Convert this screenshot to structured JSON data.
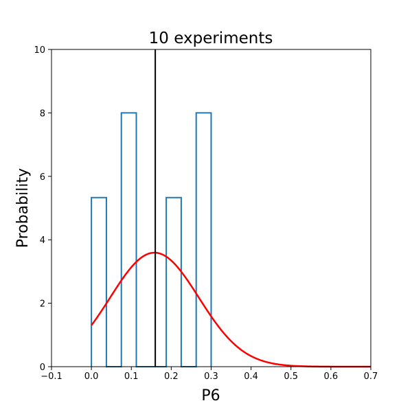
{
  "chart_data": {
    "type": "bar",
    "title": "10 experiments",
    "xlabel": "P6",
    "ylabel": "Probability",
    "xlim": [
      -0.1,
      0.7
    ],
    "ylim": [
      0,
      10
    ],
    "x_ticks": [
      "−0.1",
      "0.0",
      "0.1",
      "0.2",
      "0.3",
      "0.4",
      "0.5",
      "0.6",
      "0.7"
    ],
    "y_ticks": [
      "0",
      "2",
      "4",
      "6",
      "8",
      "10"
    ],
    "grid": false,
    "histogram": {
      "style": "step",
      "color": "#1f77b4",
      "bin_edges": [
        0.0,
        0.0375,
        0.075,
        0.1125,
        0.15,
        0.1875,
        0.225,
        0.2625,
        0.3
      ],
      "values": [
        5.33,
        0,
        8.0,
        0,
        0,
        5.33,
        0,
        8.0
      ]
    },
    "vertical_line": {
      "x": 0.16,
      "color": "#000000"
    },
    "normal_curve": {
      "color": "#ff0000",
      "mean": 0.158,
      "std": 0.111,
      "x_start": 0.0,
      "x_end": 0.7
    }
  }
}
